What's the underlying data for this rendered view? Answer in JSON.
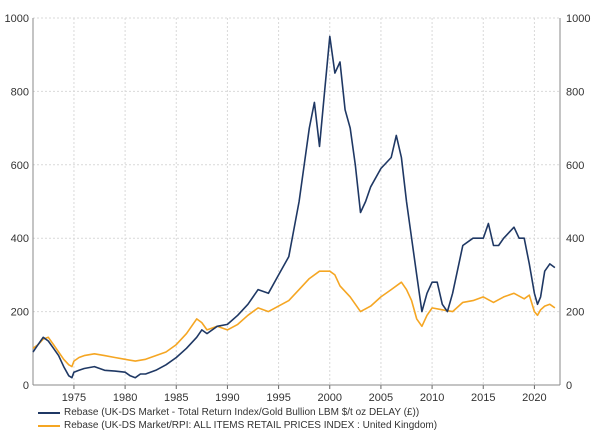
{
  "chart_data": {
    "type": "line",
    "title": "",
    "xlabel": "",
    "ylabel": "",
    "xlim": [
      1971,
      2022.5
    ],
    "ylim": [
      0,
      1000
    ],
    "x_ticks": [
      "1975",
      "1980",
      "1985",
      "1990",
      "1995",
      "2000",
      "2005",
      "2010",
      "2015",
      "2020"
    ],
    "y_ticks": [
      "0",
      "200",
      "400",
      "600",
      "800",
      "1000"
    ],
    "grid": true,
    "legend_position": "bottom-left",
    "series": [
      {
        "name": "Rebase (UK-DS Market - Total Return Index/Gold Bullion LBM $/t oz DELAY (£))",
        "color": "#1f3864",
        "x": [
          1971.0,
          1971.5,
          1972.0,
          1972.5,
          1973.0,
          1973.5,
          1974.0,
          1974.5,
          1974.8,
          1975.0,
          1975.5,
          1976.0,
          1977.0,
          1978.0,
          1979.0,
          1980.0,
          1980.5,
          1981.0,
          1981.5,
          1982.0,
          1983.0,
          1984.0,
          1985.0,
          1986.0,
          1987.0,
          1987.5,
          1988.0,
          1989.0,
          1990.0,
          1991.0,
          1992.0,
          1993.0,
          1994.0,
          1995.0,
          1996.0,
          1997.0,
          1997.5,
          1998.0,
          1998.5,
          1999.0,
          1999.5,
          2000.0,
          2000.5,
          2001.0,
          2001.5,
          2002.0,
          2002.5,
          2003.0,
          2003.5,
          2004.0,
          2005.0,
          2006.0,
          2006.5,
          2007.0,
          2007.5,
          2008.0,
          2008.5,
          2009.0,
          2009.5,
          2010.0,
          2010.5,
          2011.0,
          2011.5,
          2012.0,
          2013.0,
          2014.0,
          2015.0,
          2015.5,
          2016.0,
          2016.5,
          2017.0,
          2018.0,
          2018.5,
          2019.0,
          2019.5,
          2020.0,
          2020.3,
          2020.6,
          2021.0,
          2021.5,
          2022.0
        ],
        "values": [
          90,
          110,
          130,
          120,
          100,
          80,
          50,
          25,
          20,
          35,
          40,
          45,
          50,
          40,
          38,
          35,
          25,
          20,
          30,
          30,
          40,
          55,
          75,
          100,
          130,
          150,
          140,
          160,
          165,
          190,
          220,
          260,
          250,
          300,
          350,
          500,
          600,
          700,
          770,
          650,
          800,
          950,
          850,
          880,
          750,
          700,
          600,
          470,
          500,
          540,
          590,
          620,
          680,
          620,
          500,
          400,
          300,
          200,
          250,
          280,
          280,
          220,
          200,
          250,
          380,
          400,
          400,
          440,
          380,
          380,
          400,
          430,
          400,
          400,
          330,
          250,
          220,
          240,
          310,
          330,
          320
        ]
      },
      {
        "name": "Rebase (UK-DS Market/RPI: ALL ITEMS RETAIL PRICES INDEX : United Kingdom)",
        "color": "#f5a623",
        "x": [
          1971.0,
          1971.5,
          1972.0,
          1972.5,
          1973.0,
          1973.5,
          1974.0,
          1974.5,
          1974.8,
          1975.0,
          1975.5,
          1976.0,
          1977.0,
          1978.0,
          1979.0,
          1980.0,
          1981.0,
          1982.0,
          1983.0,
          1984.0,
          1985.0,
          1986.0,
          1987.0,
          1987.5,
          1988.0,
          1989.0,
          1990.0,
          1991.0,
          1992.0,
          1993.0,
          1994.0,
          1995.0,
          1996.0,
          1997.0,
          1998.0,
          1999.0,
          2000.0,
          2000.5,
          2001.0,
          2002.0,
          2003.0,
          2004.0,
          2005.0,
          2006.0,
          2007.0,
          2007.5,
          2008.0,
          2008.5,
          2009.0,
          2009.5,
          2010.0,
          2011.0,
          2012.0,
          2013.0,
          2014.0,
          2015.0,
          2016.0,
          2017.0,
          2018.0,
          2019.0,
          2019.5,
          2020.0,
          2020.3,
          2020.6,
          2021.0,
          2021.5,
          2022.0
        ],
        "values": [
          100,
          110,
          125,
          130,
          110,
          90,
          70,
          55,
          50,
          65,
          75,
          80,
          85,
          80,
          75,
          70,
          65,
          70,
          80,
          90,
          110,
          140,
          180,
          170,
          150,
          160,
          150,
          165,
          190,
          210,
          200,
          215,
          230,
          260,
          290,
          310,
          310,
          300,
          270,
          240,
          200,
          215,
          240,
          260,
          280,
          260,
          230,
          180,
          160,
          190,
          210,
          205,
          200,
          225,
          230,
          240,
          225,
          240,
          250,
          235,
          245,
          200,
          190,
          205,
          215,
          220,
          210
        ]
      }
    ]
  }
}
